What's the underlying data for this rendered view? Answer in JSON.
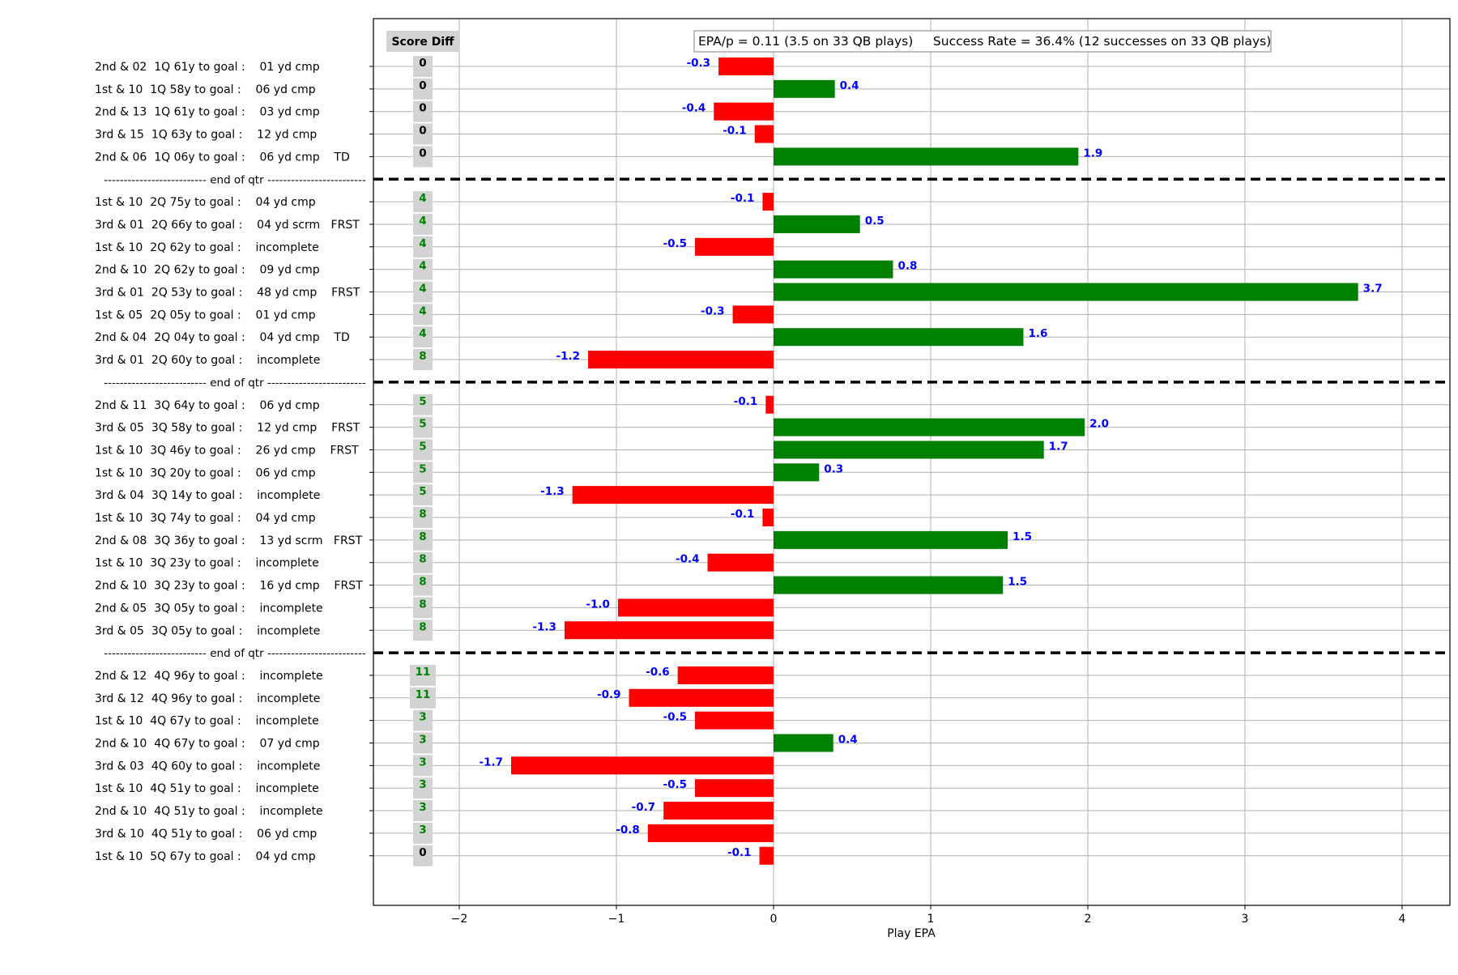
{
  "chart_data": {
    "type": "bar",
    "orientation": "horizontal",
    "title": "",
    "xlabel": "Play EPA",
    "ylabel": "",
    "xlim": [
      -2.5,
      4.3
    ],
    "xticks": [
      -2,
      -1,
      0,
      1,
      2,
      3,
      4
    ],
    "xtick_labels": [
      "−2",
      "−1",
      "0",
      "1",
      "2",
      "3",
      "4"
    ],
    "grid": true,
    "summary_box": "EPA/p = 0.11 (3.5 on 33 QB plays)     Success Rate = 36.4% (12 successes on 33 QB plays)",
    "score_diff_header": "Score Diff",
    "separator_label": "-------------------------- end of qtr -------------------------",
    "colors": {
      "positive": "#008000",
      "negative": "#ff0000",
      "value_label": "#0000ff",
      "score_zero": "#000000",
      "score_nonzero": "#008000",
      "score_box": "#d3d3d3",
      "grid": "#b0b0b0",
      "separator": "#000000"
    },
    "rows": [
      {
        "kind": "play",
        "label": "2nd & 02  1Q 61y to goal :    01 yd cmp",
        "score_diff": "0",
        "epa": -0.35,
        "value_label": "-0.3"
      },
      {
        "kind": "play",
        "label": "1st & 10  1Q 58y to goal :    06 yd cmp",
        "score_diff": "0",
        "epa": 0.39,
        "value_label": "0.4"
      },
      {
        "kind": "play",
        "label": "2nd & 13  1Q 61y to goal :    03 yd cmp",
        "score_diff": "0",
        "epa": -0.38,
        "value_label": "-0.4"
      },
      {
        "kind": "play",
        "label": "3rd & 15  1Q 63y to goal :    12 yd cmp",
        "score_diff": "0",
        "epa": -0.12,
        "value_label": "-0.1"
      },
      {
        "kind": "play",
        "label": "2nd & 06  1Q 06y to goal :    06 yd cmp    TD",
        "score_diff": "0",
        "epa": 1.94,
        "value_label": "1.9"
      },
      {
        "kind": "separator"
      },
      {
        "kind": "play",
        "label": "1st & 10  2Q 75y to goal :    04 yd cmp",
        "score_diff": "4",
        "epa": -0.07,
        "value_label": "-0.1"
      },
      {
        "kind": "play",
        "label": "3rd & 01  2Q 66y to goal :    04 yd scrm   FRST",
        "score_diff": "4",
        "epa": 0.55,
        "value_label": "0.5"
      },
      {
        "kind": "play",
        "label": "1st & 10  2Q 62y to goal :    incomplete",
        "score_diff": "4",
        "epa": -0.5,
        "value_label": "-0.5"
      },
      {
        "kind": "play",
        "label": "2nd & 10  2Q 62y to goal :    09 yd cmp",
        "score_diff": "4",
        "epa": 0.76,
        "value_label": "0.8"
      },
      {
        "kind": "play",
        "label": "3rd & 01  2Q 53y to goal :    48 yd cmp    FRST",
        "score_diff": "4",
        "epa": 3.72,
        "value_label": "3.7"
      },
      {
        "kind": "play",
        "label": "1st & 05  2Q 05y to goal :    01 yd cmp",
        "score_diff": "4",
        "epa": -0.26,
        "value_label": "-0.3"
      },
      {
        "kind": "play",
        "label": "2nd & 04  2Q 04y to goal :    04 yd cmp    TD",
        "score_diff": "4",
        "epa": 1.59,
        "value_label": "1.6"
      },
      {
        "kind": "play",
        "label": "3rd & 01  2Q 60y to goal :    incomplete",
        "score_diff": "8",
        "epa": -1.18,
        "value_label": "-1.2"
      },
      {
        "kind": "separator"
      },
      {
        "kind": "play",
        "label": "2nd & 11  3Q 64y to goal :    06 yd cmp",
        "score_diff": "5",
        "epa": -0.05,
        "value_label": "-0.1"
      },
      {
        "kind": "play",
        "label": "3rd & 05  3Q 58y to goal :    12 yd cmp    FRST",
        "score_diff": "5",
        "epa": 1.98,
        "value_label": "2.0"
      },
      {
        "kind": "play",
        "label": "1st & 10  3Q 46y to goal :    26 yd cmp    FRST",
        "score_diff": "5",
        "epa": 1.72,
        "value_label": "1.7"
      },
      {
        "kind": "play",
        "label": "1st & 10  3Q 20y to goal :    06 yd cmp",
        "score_diff": "5",
        "epa": 0.29,
        "value_label": "0.3"
      },
      {
        "kind": "play",
        "label": "3rd & 04  3Q 14y to goal :    incomplete",
        "score_diff": "5",
        "epa": -1.28,
        "value_label": "-1.3"
      },
      {
        "kind": "play",
        "label": "1st & 10  3Q 74y to goal :    04 yd cmp",
        "score_diff": "8",
        "epa": -0.07,
        "value_label": "-0.1"
      },
      {
        "kind": "play",
        "label": "2nd & 08  3Q 36y to goal :    13 yd scrm   FRST",
        "score_diff": "8",
        "epa": 1.49,
        "value_label": "1.5"
      },
      {
        "kind": "play",
        "label": "1st & 10  3Q 23y to goal :    incomplete",
        "score_diff": "8",
        "epa": -0.42,
        "value_label": "-0.4"
      },
      {
        "kind": "play",
        "label": "2nd & 10  3Q 23y to goal :    16 yd cmp    FRST",
        "score_diff": "8",
        "epa": 1.46,
        "value_label": "1.5"
      },
      {
        "kind": "play",
        "label": "2nd & 05  3Q 05y to goal :    incomplete",
        "score_diff": "8",
        "epa": -0.99,
        "value_label": "-1.0"
      },
      {
        "kind": "play",
        "label": "3rd & 05  3Q 05y to goal :    incomplete",
        "score_diff": "8",
        "epa": -1.33,
        "value_label": "-1.3"
      },
      {
        "kind": "separator"
      },
      {
        "kind": "play",
        "label": "2nd & 12  4Q 96y to goal :    incomplete",
        "score_diff": "11",
        "epa": -0.61,
        "value_label": "-0.6"
      },
      {
        "kind": "play",
        "label": "3rd & 12  4Q 96y to goal :    incomplete",
        "score_diff": "11",
        "epa": -0.92,
        "value_label": "-0.9"
      },
      {
        "kind": "play",
        "label": "1st & 10  4Q 67y to goal :    incomplete",
        "score_diff": "3",
        "epa": -0.5,
        "value_label": "-0.5"
      },
      {
        "kind": "play",
        "label": "2nd & 10  4Q 67y to goal :    07 yd cmp",
        "score_diff": "3",
        "epa": 0.38,
        "value_label": "0.4"
      },
      {
        "kind": "play",
        "label": "3rd & 03  4Q 60y to goal :    incomplete",
        "score_diff": "3",
        "epa": -1.67,
        "value_label": "-1.7"
      },
      {
        "kind": "play",
        "label": "1st & 10  4Q 51y to goal :    incomplete",
        "score_diff": "3",
        "epa": -0.5,
        "value_label": "-0.5"
      },
      {
        "kind": "play",
        "label": "2nd & 10  4Q 51y to goal :    incomplete",
        "score_diff": "3",
        "epa": -0.7,
        "value_label": "-0.7"
      },
      {
        "kind": "play",
        "label": "3rd & 10  4Q 51y to goal :    06 yd cmp",
        "score_diff": "3",
        "epa": -0.8,
        "value_label": "-0.8"
      },
      {
        "kind": "play",
        "label": "1st & 10  5Q 67y to goal :    04 yd cmp",
        "score_diff": "0",
        "epa": -0.09,
        "value_label": "-0.1"
      }
    ]
  }
}
